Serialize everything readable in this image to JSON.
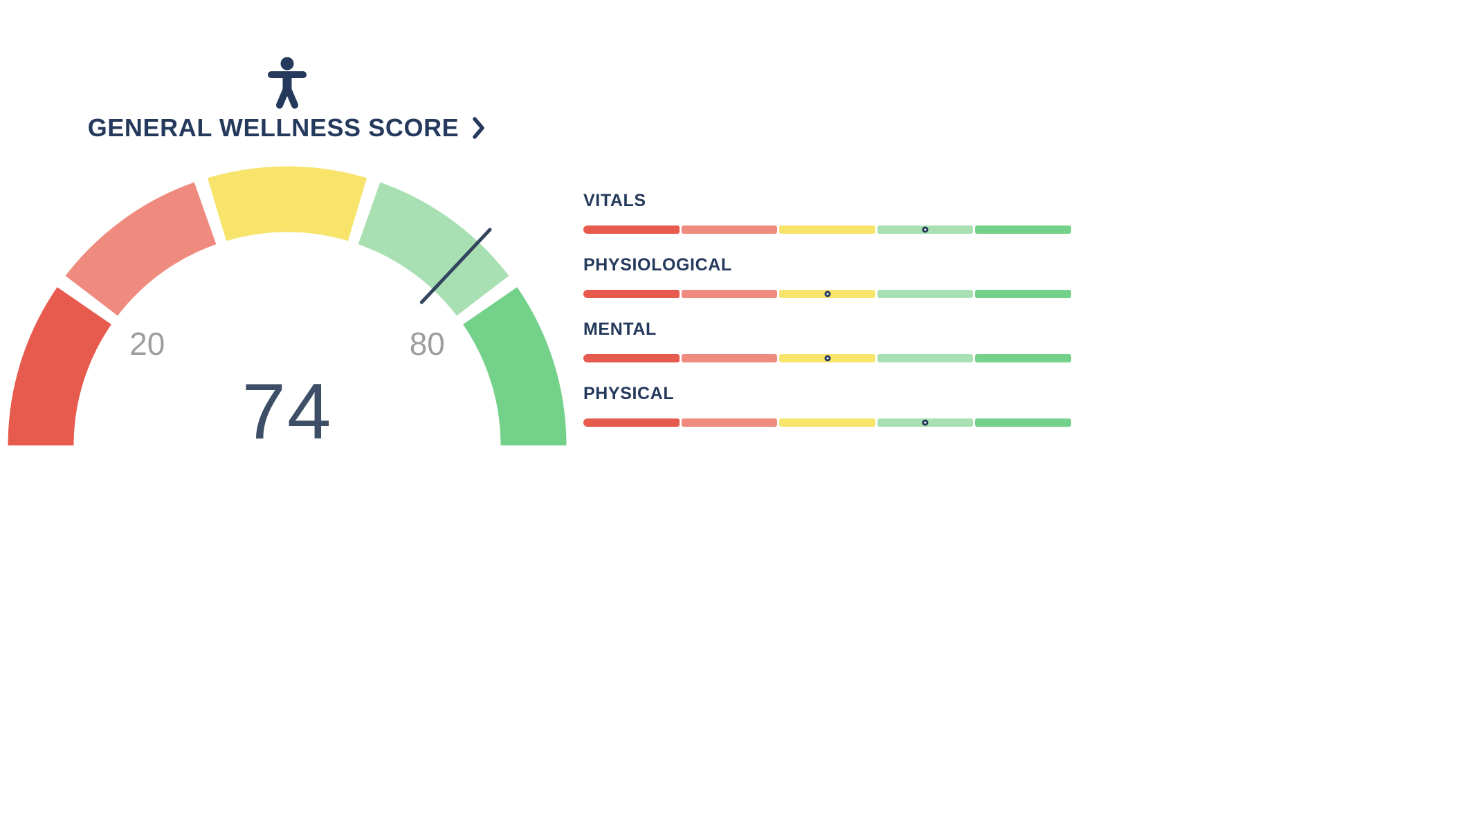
{
  "colors": {
    "navy": "#24395b",
    "value_navy": "#3d4e66",
    "needle": "#33455f",
    "tick_gray": "#9d9d9d",
    "red": "#e75a4e",
    "salmon": "#ef8a7e",
    "yellow": "#f8e36b",
    "light_green": "#a9e0b3",
    "green": "#74d189"
  },
  "icons": {
    "person": "standing-person-figure",
    "chevron": "chevron-right"
  },
  "chart_data": [
    {
      "type": "gauge",
      "title": "GENERAL WELLNESS SCORE",
      "value": 74,
      "range": [
        0,
        100
      ],
      "ticks": [
        {
          "value": 20,
          "label": "20"
        },
        {
          "value": 80,
          "label": "80"
        }
      ],
      "segments": [
        {
          "from": 0,
          "to": 20,
          "color": "#e75a4e",
          "label": "red"
        },
        {
          "from": 20,
          "to": 40,
          "color": "#ef8a7e",
          "label": "salmon"
        },
        {
          "from": 40,
          "to": 60,
          "color": "#f8e36b",
          "label": "yellow"
        },
        {
          "from": 60,
          "to": 80,
          "color": "#a9e0b3",
          "label": "light-green"
        },
        {
          "from": 80,
          "to": 100,
          "color": "#74d189",
          "label": "green"
        }
      ]
    },
    {
      "type": "slider",
      "range": [
        0,
        100
      ],
      "categories": [
        "VITALS",
        "PHYSIOLOGICAL",
        "MENTAL",
        "PHYSICAL"
      ],
      "values": [
        70,
        50,
        50,
        70
      ],
      "segment_colors": [
        "#e75a4e",
        "#ef8a7e",
        "#f8e36b",
        "#a9e0b3",
        "#74d189"
      ]
    }
  ]
}
